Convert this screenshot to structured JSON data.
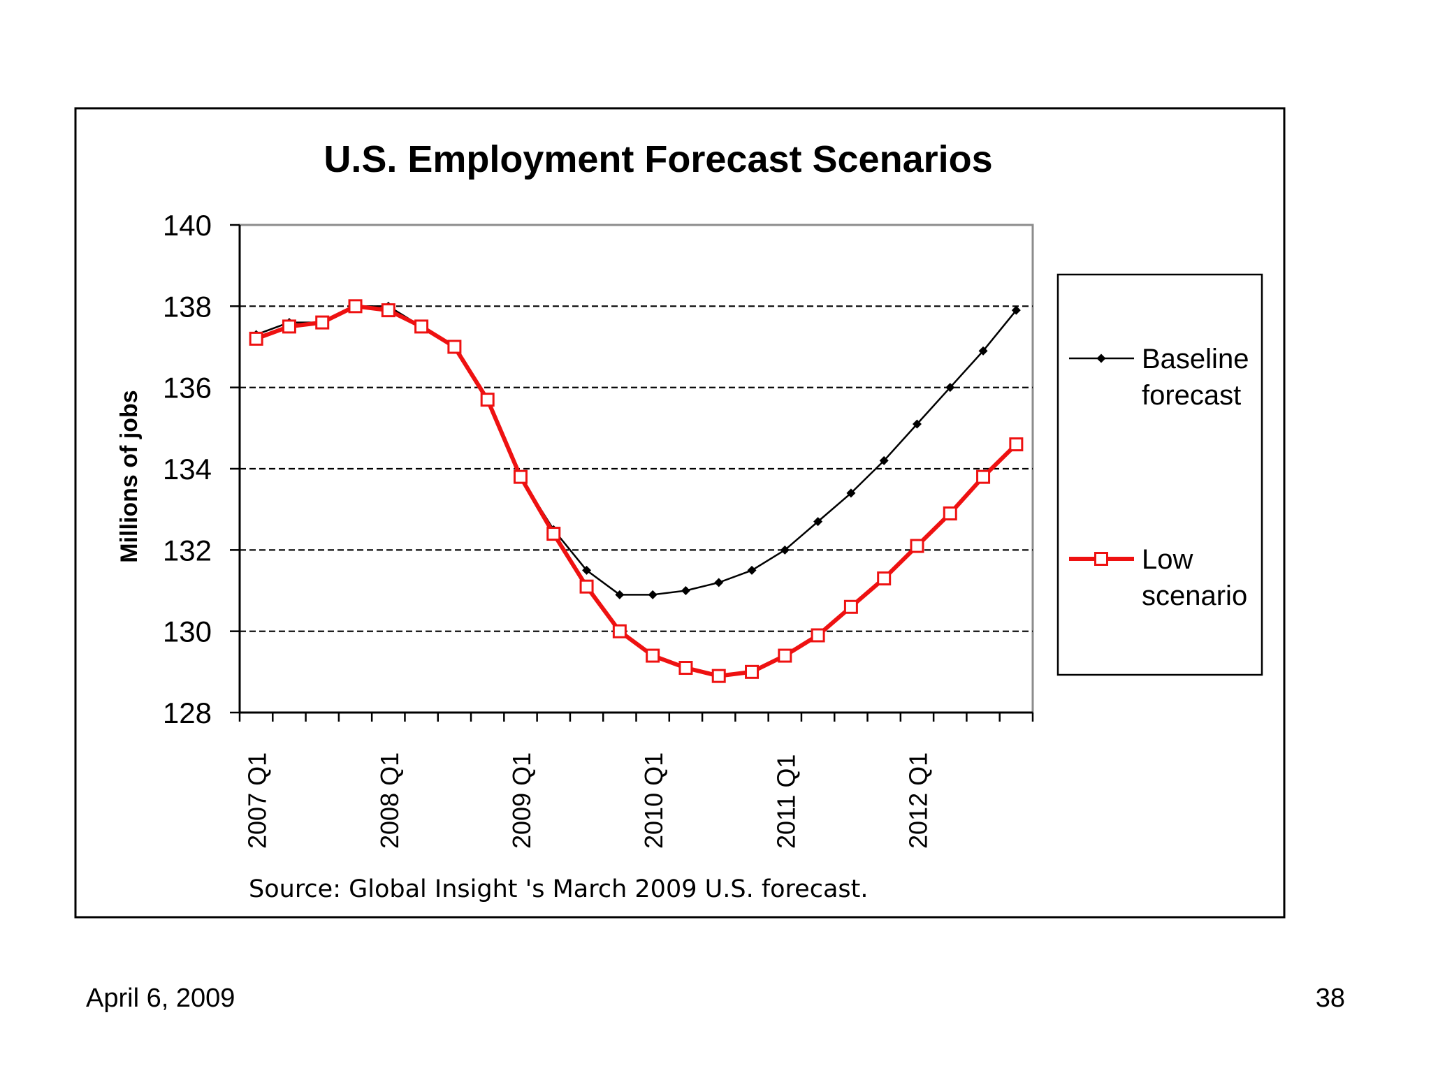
{
  "footer": {
    "date": "April 6, 2009",
    "page_number": "38"
  },
  "chart_data": {
    "type": "line",
    "title": "U.S. Employment Forecast Scenarios",
    "xlabel": "",
    "ylabel": "Millions of jobs",
    "ylim": [
      128,
      140
    ],
    "yticks": [
      128,
      130,
      132,
      134,
      136,
      138,
      140
    ],
    "gridlines": "dashed horizontal at 130, 132, 134, 136, 138",
    "legend_position": "right",
    "source_note": "Source: Global Insight 's March 2009  U.S. forecast.",
    "x": [
      "2007 Q1",
      "2007 Q2",
      "2007 Q3",
      "2007 Q4",
      "2008 Q1",
      "2008 Q2",
      "2008 Q3",
      "2008 Q4",
      "2009 Q1",
      "2009 Q2",
      "2009 Q3",
      "2009 Q4",
      "2010 Q1",
      "2010 Q2",
      "2010 Q3",
      "2010 Q4",
      "2011 Q1",
      "2011 Q2",
      "2011 Q3",
      "2011 Q4",
      "2012 Q1",
      "2012 Q2",
      "2012 Q3",
      "2012 Q4"
    ],
    "x_tick_labels": [
      "2007 Q1",
      "2008 Q1",
      "2009 Q1",
      "2010 Q1",
      "2011 Q1",
      "2012 Q1"
    ],
    "series": [
      {
        "name": "Baseline forecast",
        "legend_lines": [
          "Baseline",
          "forecast"
        ],
        "color": "#000000",
        "marker": "diamond",
        "values": [
          137.3,
          137.6,
          137.6,
          138.0,
          138.0,
          137.5,
          137.0,
          135.7,
          133.8,
          132.5,
          131.5,
          130.9,
          130.9,
          131.0,
          131.2,
          131.5,
          132.0,
          132.7,
          133.4,
          134.2,
          135.1,
          136.0,
          136.9,
          137.9
        ]
      },
      {
        "name": "Low scenario",
        "legend_lines": [
          "Low",
          "scenario"
        ],
        "color": "#ee1111",
        "marker": "square",
        "values": [
          137.2,
          137.5,
          137.6,
          138.0,
          137.9,
          137.5,
          137.0,
          135.7,
          133.8,
          132.4,
          131.1,
          130.0,
          129.4,
          129.1,
          128.9,
          129.0,
          129.4,
          129.9,
          130.6,
          131.3,
          132.1,
          132.9,
          133.8,
          134.6
        ]
      }
    ]
  }
}
